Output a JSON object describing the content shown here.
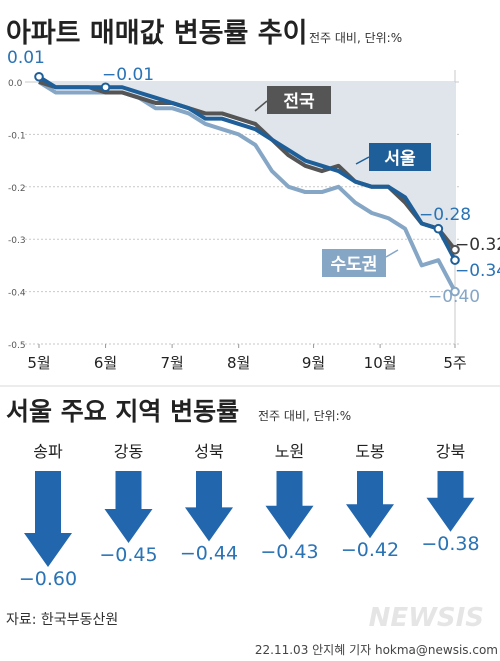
{
  "colors": {
    "seoul": "#1f5f99",
    "national": "#555555",
    "metro": "#86a6c6",
    "area_fill": "#dfe5ea",
    "arrow": "#2267ad",
    "label_blue": "#2a73b5"
  },
  "top": {
    "title": "아파트 매매값 변동률 추이",
    "unit": "전주 대비, 단위:%"
  },
  "bottom": {
    "title": "서울 주요 지역 변동률",
    "unit": "전주 대비, 단위:%"
  },
  "footer": {
    "source": "자료: 한국부동산원",
    "credit": "22.11.03 안지혜 기자  hokma@newsis.com",
    "logo": "NEWSIS"
  },
  "chart_data": [
    {
      "type": "line",
      "title": "아파트 매매값 변동률 추이",
      "unit": "전주 대비, 단위:%",
      "ylim": [
        -0.5,
        0.05
      ],
      "yticks": [
        "0.0",
        "-0.1",
        "-0.2",
        "-0.3",
        "-0.4",
        "-0.5"
      ],
      "ytick_values": [
        0.0,
        -0.1,
        -0.2,
        -0.3,
        -0.4,
        -0.5
      ],
      "xticks": [
        {
          "label": "5월",
          "x": 0
        },
        {
          "label": "6월",
          "x": 4
        },
        {
          "label": "7월",
          "x": 8
        },
        {
          "label": "8월",
          "x": 12
        },
        {
          "label": "9월",
          "x": 16.5
        },
        {
          "label": "10월",
          "x": 20.5
        },
        {
          "label": "5주",
          "x": 25
        }
      ],
      "grid": true,
      "series": [
        {
          "name": "전국",
          "color_key": "national",
          "values": [
            0.0,
            -0.01,
            -0.01,
            -0.01,
            -0.02,
            -0.02,
            -0.03,
            -0.04,
            -0.04,
            -0.05,
            -0.06,
            -0.06,
            -0.07,
            -0.08,
            -0.11,
            -0.14,
            -0.16,
            -0.17,
            -0.16,
            -0.19,
            -0.2,
            -0.2,
            -0.23,
            -0.27,
            -0.28,
            -0.32
          ]
        },
        {
          "name": "서울",
          "color_key": "seoul",
          "values": [
            0.01,
            -0.01,
            -0.01,
            -0.01,
            -0.01,
            -0.01,
            -0.02,
            -0.03,
            -0.04,
            -0.05,
            -0.07,
            -0.07,
            -0.08,
            -0.09,
            -0.11,
            -0.13,
            -0.15,
            -0.16,
            -0.17,
            -0.19,
            -0.2,
            -0.2,
            -0.22,
            -0.27,
            -0.28,
            -0.34
          ]
        },
        {
          "name": "수도권",
          "color_key": "metro",
          "values": [
            0.0,
            -0.02,
            -0.02,
            -0.02,
            -0.02,
            -0.02,
            -0.03,
            -0.05,
            -0.05,
            -0.06,
            -0.08,
            -0.09,
            -0.1,
            -0.12,
            -0.17,
            -0.2,
            -0.21,
            -0.21,
            -0.2,
            -0.23,
            -0.25,
            -0.26,
            -0.28,
            -0.35,
            -0.34,
            -0.4
          ]
        }
      ],
      "annotations": [
        "0.01",
        "−0.01",
        "−0.28",
        "−0.32",
        "−0.34",
        "−0.40"
      ]
    },
    {
      "type": "bar",
      "title": "서울 주요 지역 변동률",
      "unit": "전주 대비, 단위:%",
      "categories": [
        "송파",
        "강동",
        "성북",
        "노원",
        "도봉",
        "강북"
      ],
      "values": [
        -0.6,
        -0.45,
        -0.44,
        -0.43,
        -0.42,
        -0.38
      ],
      "labels": [
        "−0.60",
        "−0.45",
        "−0.44",
        "−0.43",
        "−0.42",
        "−0.38"
      ]
    }
  ]
}
